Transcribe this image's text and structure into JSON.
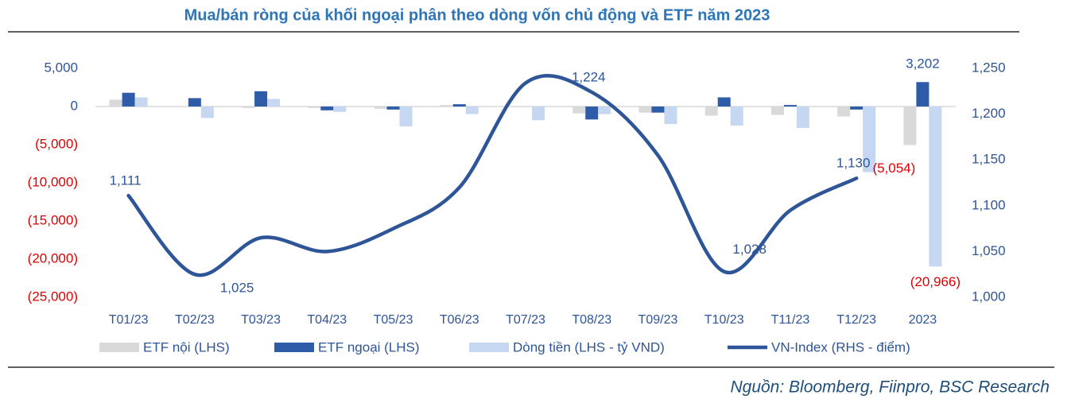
{
  "chart_data": {
    "type": "bar",
    "title": "Mua/bán ròng của khối ngoại phân theo dòng vốn chủ động và ETF năm 2023",
    "source": "Nguồn: Bloomberg, Fiinpro, BSC Research",
    "categories": [
      "T01/23",
      "T02/23",
      "T03/23",
      "T04/23",
      "T05/23",
      "T06/23",
      "T07/23",
      "T08/23",
      "T09/23",
      "T10/23",
      "T11/23",
      "T12/23",
      "2023"
    ],
    "series": [
      {
        "name": "ETF nội (LHS)",
        "color": "#d9d9d9",
        "values": [
          900,
          0,
          -200,
          -200,
          -300,
          200,
          0,
          -900,
          -800,
          -1200,
          -1100,
          -1300,
          -5054
        ],
        "value_labels": [
          null,
          null,
          null,
          null,
          null,
          null,
          null,
          null,
          null,
          null,
          null,
          null,
          "(5,054)"
        ]
      },
      {
        "name": "ETF ngoại (LHS)",
        "color": "#2e5ca8",
        "values": [
          1800,
          1100,
          2000,
          -500,
          -400,
          300,
          0,
          -1700,
          -800,
          1200,
          200,
          -400,
          3202
        ],
        "value_labels": [
          null,
          null,
          null,
          null,
          null,
          null,
          null,
          null,
          null,
          null,
          null,
          null,
          "3,202"
        ]
      },
      {
        "name": "Dòng tiền (LHS - tỷ VND)",
        "color": "#c6d7f1",
        "values": [
          1200,
          -1500,
          1000,
          -700,
          -2600,
          -1000,
          -1800,
          -1000,
          -2300,
          -2500,
          -2800,
          -8600,
          -20966
        ],
        "value_labels": [
          null,
          null,
          null,
          null,
          null,
          null,
          null,
          null,
          null,
          null,
          null,
          null,
          "(20,966)"
        ]
      },
      {
        "name": "VN-Index (RHS - điểm)",
        "color": "#2e5597",
        "type": "line",
        "axis": "y2",
        "values": [
          1111,
          1025,
          1065,
          1050,
          1075,
          1120,
          1234,
          1224,
          1155,
          1028,
          1095,
          1130,
          null
        ],
        "value_labels": [
          "1,111",
          "1,025",
          null,
          null,
          null,
          null,
          null,
          "1,224",
          null,
          "1,028",
          null,
          "1,130",
          null
        ]
      }
    ],
    "ylim": [
      -25000,
      5000
    ],
    "yticks": [
      {
        "value": -25000,
        "label": "(25,000)"
      },
      {
        "value": -20000,
        "label": "(20,000)"
      },
      {
        "value": -15000,
        "label": "(15,000)"
      },
      {
        "value": -10000,
        "label": "(10,000)"
      },
      {
        "value": -5000,
        "label": "(5,000)"
      },
      0,
      {
        "value": 5000,
        "label": "5,000"
      }
    ],
    "y2lim": [
      1000,
      1250
    ],
    "y2ticks": [
      {
        "value": 1000,
        "label": "1,000"
      },
      {
        "value": 1050,
        "label": "1,050"
      },
      {
        "value": 1100,
        "label": "1,100"
      },
      {
        "value": 1150,
        "label": "1,150"
      },
      {
        "value": 1200,
        "label": "1,200"
      },
      {
        "value": 1250,
        "label": "1,250"
      }
    ],
    "legend": "bottom"
  }
}
